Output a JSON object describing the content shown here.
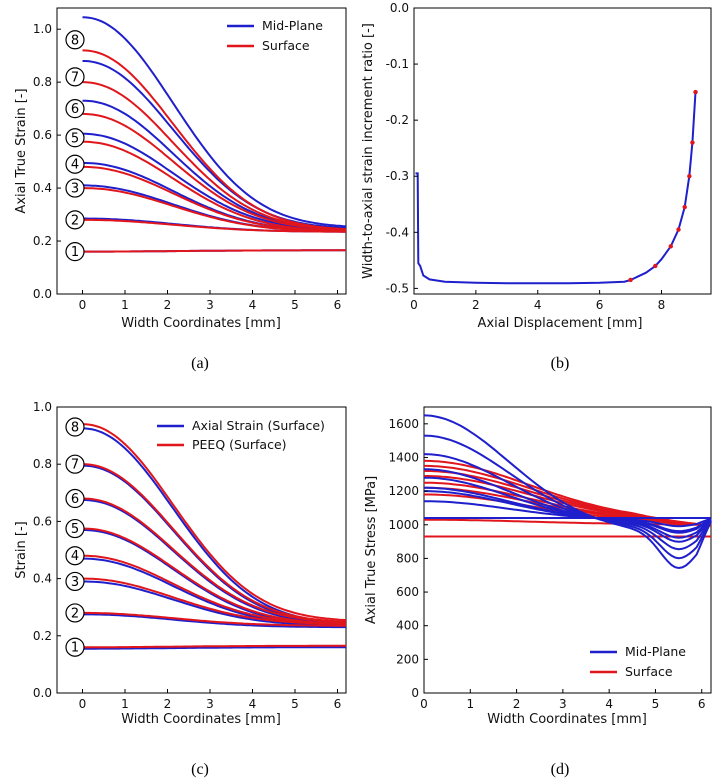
{
  "chart_data": [
    {
      "panel": "a",
      "type": "line",
      "caption": "(a)",
      "xlabel": "Width Coordinates [mm]",
      "ylabel": "Axial True Strain [-]",
      "xlim": [
        -0.6,
        6.2
      ],
      "ylim": [
        0.0,
        1.08
      ],
      "xticks": [
        "0",
        "1",
        "2",
        "3",
        "4",
        "5",
        "6"
      ],
      "yticks": [
        "0.0",
        "0.2",
        "0.4",
        "0.6",
        "0.8",
        "1.0"
      ],
      "legend": [
        "Mid-Plane",
        "Surface"
      ],
      "legend_position": "top-right",
      "colors": {
        "mid": "#1f1fcc",
        "surf": "#e0161c"
      },
      "stage_labels": [
        "1",
        "2",
        "3",
        "4",
        "5",
        "6",
        "7",
        "8"
      ],
      "stage_label_y": [
        0.16,
        0.28,
        0.4,
        0.49,
        0.59,
        0.7,
        0.82,
        0.96
      ],
      "curves_at_x": [
        0,
        6.2
      ],
      "mid_plane": [
        [
          0.16,
          0.165
        ],
        [
          0.285,
          0.235
        ],
        [
          0.41,
          0.235
        ],
        [
          0.495,
          0.235
        ],
        [
          0.605,
          0.24
        ],
        [
          0.73,
          0.24
        ],
        [
          0.88,
          0.245
        ],
        [
          1.045,
          0.25
        ]
      ],
      "surface": [
        [
          0.16,
          0.165
        ],
        [
          0.28,
          0.235
        ],
        [
          0.4,
          0.235
        ],
        [
          0.48,
          0.235
        ],
        [
          0.575,
          0.235
        ],
        [
          0.68,
          0.24
        ],
        [
          0.8,
          0.24
        ],
        [
          0.92,
          0.24
        ]
      ]
    },
    {
      "panel": "b",
      "type": "line",
      "caption": "(b)",
      "xlabel": "Axial Displacement [mm]",
      "ylabel": "Width-to-axial strain increment ratio [-]",
      "xlim": [
        0,
        9.6
      ],
      "ylim": [
        -0.51,
        0.0
      ],
      "xticks": [
        "0",
        "2",
        "4",
        "6",
        "8"
      ],
      "yticks": [
        "0.0",
        "-0.1",
        "-0.2",
        "-0.3",
        "-0.4",
        "-0.5"
      ],
      "line_x": [
        0.05,
        0.12,
        0.14,
        0.2,
        0.3,
        0.5,
        1,
        2,
        3,
        4,
        5,
        6,
        6.8,
        7,
        7.5,
        7.8,
        8,
        8.3,
        8.55,
        8.75,
        8.9,
        9.0,
        9.1
      ],
      "line_y": [
        -0.295,
        -0.295,
        -0.455,
        -0.46,
        -0.477,
        -0.484,
        -0.488,
        -0.49,
        -0.491,
        -0.491,
        -0.491,
        -0.49,
        -0.488,
        -0.485,
        -0.472,
        -0.46,
        -0.448,
        -0.425,
        -0.395,
        -0.355,
        -0.3,
        -0.24,
        -0.15
      ],
      "markers_x": [
        7.0,
        7.8,
        8.3,
        8.55,
        8.75,
        8.9,
        9.0,
        9.1
      ],
      "markers_y": [
        -0.485,
        -0.46,
        -0.425,
        -0.395,
        -0.355,
        -0.3,
        -0.24,
        -0.15
      ]
    },
    {
      "panel": "c",
      "type": "line",
      "caption": "(c)",
      "xlabel": "Width Coordinates [mm]",
      "ylabel": "Strain [-]",
      "xlim": [
        -0.6,
        6.2
      ],
      "ylim": [
        0.0,
        1.0
      ],
      "xticks": [
        "0",
        "1",
        "2",
        "3",
        "4",
        "5",
        "6"
      ],
      "yticks": [
        "0.0",
        "0.2",
        "0.4",
        "0.6",
        "0.8",
        "1.0"
      ],
      "legend": [
        "Axial Strain (Surface)",
        "PEEQ (Surface)"
      ],
      "legend_position": "top-right",
      "stage_labels": [
        "1",
        "2",
        "3",
        "4",
        "5",
        "6",
        "7",
        "8"
      ],
      "stage_label_y": [
        0.16,
        0.28,
        0.39,
        0.48,
        0.575,
        0.68,
        0.8,
        0.93
      ],
      "axial_surface": [
        [
          0.155,
          0.16
        ],
        [
          0.275,
          0.23
        ],
        [
          0.39,
          0.235
        ],
        [
          0.47,
          0.235
        ],
        [
          0.57,
          0.235
        ],
        [
          0.675,
          0.24
        ],
        [
          0.795,
          0.24
        ],
        [
          0.925,
          0.24
        ]
      ],
      "peeq_surface": [
        [
          0.16,
          0.165
        ],
        [
          0.28,
          0.235
        ],
        [
          0.4,
          0.24
        ],
        [
          0.48,
          0.24
        ],
        [
          0.575,
          0.24
        ],
        [
          0.68,
          0.245
        ],
        [
          0.8,
          0.245
        ],
        [
          0.94,
          0.25
        ]
      ]
    },
    {
      "panel": "d",
      "type": "line",
      "caption": "(d)",
      "xlabel": "Width Coordinates [mm]",
      "ylabel": "Axial True Stress [MPa]",
      "xlim": [
        0,
        6.2
      ],
      "ylim": [
        0,
        1700
      ],
      "xticks": [
        "0",
        "1",
        "2",
        "3",
        "4",
        "5",
        "6"
      ],
      "yticks": [
        "0",
        "200",
        "400",
        "600",
        "800",
        "1000",
        "1200",
        "1400",
        "1600"
      ],
      "legend": [
        "Mid-Plane",
        "Surface"
      ],
      "legend_position": "bottom-right",
      "mid_start": [
        1040,
        1140,
        1200,
        1220,
        1280,
        1330,
        1420,
        1530,
        1650
      ],
      "surf_start": [
        930,
        1030,
        1180,
        1220,
        1250,
        1290,
        1320,
        1350,
        1380
      ]
    }
  ]
}
